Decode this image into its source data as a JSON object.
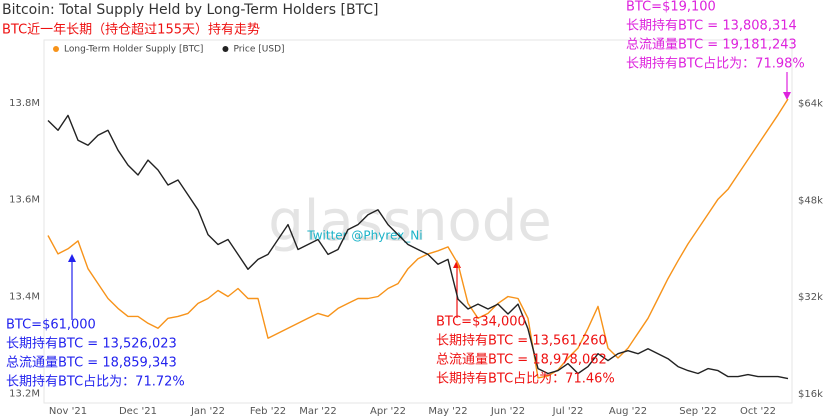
{
  "chart_data": {
    "type": "line",
    "title": "Bitcoin: Total Supply Held by Long-Term Holders [BTC]",
    "subtitle": "BTC近一年长期（持仓超过155天）持有走势",
    "watermark": "glassnode",
    "credit": "Twitter @Phyrex_Ni",
    "categories": [
      null,
      null,
      "Nov '21",
      null,
      null,
      null,
      null,
      null,
      null,
      "Dec '21",
      null,
      null,
      null,
      null,
      null,
      null,
      "Jan '22",
      null,
      null,
      null,
      null,
      null,
      "Feb '22",
      null,
      null,
      null,
      null,
      "Mar '22",
      null,
      null,
      null,
      null,
      null,
      null,
      "Apr '22",
      null,
      null,
      null,
      null,
      null,
      "May '22",
      null,
      null,
      null,
      null,
      null,
      "Jun '22",
      null,
      null,
      null,
      null,
      null,
      "Jul '22",
      null,
      null,
      null,
      null,
      null,
      "Aug '22",
      null,
      null,
      null,
      null,
      null,
      null,
      "Sep '22",
      null,
      null,
      null,
      null,
      null,
      "Oct '22",
      null,
      null,
      null
    ],
    "series": [
      {
        "name": "Long-Term Holder Supply [BTC]",
        "color": "#f7931a",
        "axis": "y",
        "values": [
          13526000,
          13488000,
          13498500,
          13515000,
          13457500,
          13426700,
          13396000,
          13375400,
          13359000,
          13359000,
          13344700,
          13334400,
          13354900,
          13359000,
          13365200,
          13385700,
          13396000,
          13412400,
          13400000,
          13416500,
          13396000,
          13396000,
          13313900,
          13324200,
          13334400,
          13344700,
          13354900,
          13365200,
          13359000,
          13375400,
          13385700,
          13396000,
          13396000,
          13400000,
          13416500,
          13426700,
          13457500,
          13478000,
          13488000,
          13494400,
          13502600,
          13467700,
          13385700,
          13354900,
          13365200,
          13385700,
          13400000,
          13396000,
          13354900,
          13231900,
          13236000,
          13248300,
          13272900,
          13293400,
          13334400,
          13379500,
          13293400,
          13272900,
          13293400,
          13324200,
          13354900,
          13396000,
          13437000,
          13473900,
          13508800,
          13539500,
          13570300,
          13601000,
          13621600,
          13652300,
          13683100,
          13713900,
          13744600,
          13775400,
          13808000
        ]
      },
      {
        "name": "Price [USD]",
        "color": "#222222",
        "axis": "y2",
        "values": [
          61200,
          59570,
          62030,
          57930,
          57110,
          58750,
          59570,
          56290,
          53830,
          52180,
          54650,
          53010,
          50540,
          51360,
          48900,
          46440,
          42340,
          40700,
          41520,
          39060,
          36600,
          38240,
          39060,
          41520,
          43980,
          39880,
          40700,
          41520,
          39060,
          39880,
          43160,
          43980,
          45620,
          46440,
          43980,
          42340,
          40700,
          39880,
          39060,
          37420,
          38240,
          31670,
          30030,
          30850,
          30030,
          30850,
          29210,
          30850,
          26750,
          20190,
          19370,
          19860,
          21010,
          19370,
          20510,
          22650,
          21500,
          22650,
          23140,
          22650,
          23470,
          22650,
          21830,
          20510,
          19860,
          19370,
          20190,
          19860,
          18870,
          18870,
          19200,
          18870,
          18870,
          18870,
          18540
        ]
      }
    ],
    "ylim": [
      13180000,
      13930000
    ],
    "yticks": [
      {
        "value": 13200000,
        "label": "13.2M"
      },
      {
        "value": 13400000,
        "label": "13.4M"
      },
      {
        "value": 13600000,
        "label": "13.6M"
      },
      {
        "value": 13800000,
        "label": "13.8M"
      }
    ],
    "y2lim": [
      14500,
      74500
    ],
    "y2ticks": [
      {
        "value": 16000,
        "label": "$16k"
      },
      {
        "value": 32000,
        "label": "$32k"
      },
      {
        "value": 48000,
        "label": "$48k"
      },
      {
        "value": 64000,
        "label": "$64k"
      }
    ],
    "grid": false,
    "annotations": [
      {
        "color": "#2222ee",
        "lines": [
          "BTC=$61,000",
          "长期持有BTC = 13,526,023",
          "总流通量BTC = 18,859,343",
          "长期持有BTC占比为：71.72%"
        ]
      },
      {
        "color": "#ee1111",
        "lines": [
          "BTC=$34,000",
          "长期持有BTC = 13,561,260",
          "总流通量BTC = 18,978,062",
          "长期持有BTC占比为：71.46%"
        ]
      },
      {
        "color": "#dd22dd",
        "lines": [
          "BTC=$19,100",
          "长期持有BTC = 13,808,314",
          "总流通量BTC = 19,181,243",
          "长期持有BTC占比为：71.98%"
        ]
      }
    ]
  }
}
